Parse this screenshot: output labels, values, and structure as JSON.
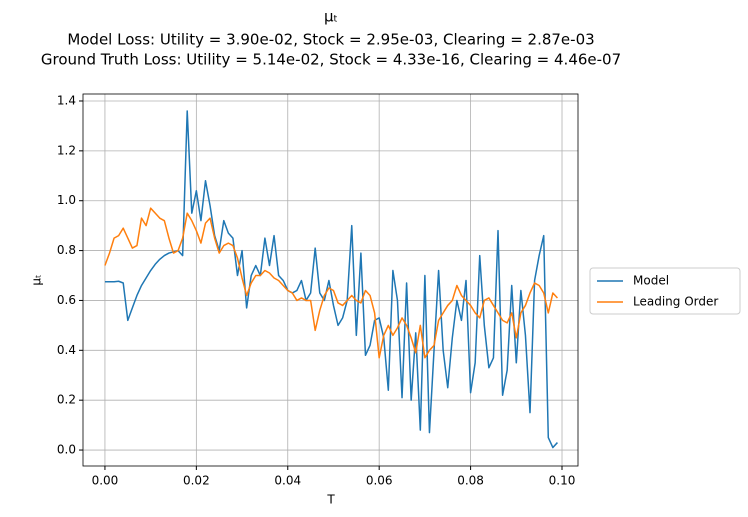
{
  "chart_data": {
    "type": "line",
    "title": "μₜ",
    "subtitle": [
      "Model Loss: Utility = 3.90e-02, Stock = 2.95e-03, Clearing = 2.87e-03",
      "Ground Truth Loss: Utility = 5.14e-02, Stock = 4.33e-16, Clearing = 4.46e-07"
    ],
    "x_label": "T",
    "y_label": "μₜ",
    "x": [
      0,
      0.001,
      0.002,
      0.003,
      0.004,
      0.005,
      0.006,
      0.007,
      0.008,
      0.009,
      0.01,
      0.011,
      0.012,
      0.013,
      0.014,
      0.015,
      0.016,
      0.017,
      0.018,
      0.019,
      0.02,
      0.021,
      0.022,
      0.023,
      0.024,
      0.025,
      0.026,
      0.027,
      0.028,
      0.029,
      0.03,
      0.031,
      0.032,
      0.033,
      0.034,
      0.035,
      0.036,
      0.037,
      0.038,
      0.039,
      0.04,
      0.041,
      0.042,
      0.043,
      0.044,
      0.045,
      0.046,
      0.047,
      0.048,
      0.049,
      0.05,
      0.051,
      0.052,
      0.053,
      0.054,
      0.055,
      0.056,
      0.057,
      0.058,
      0.059,
      0.06,
      0.061,
      0.062,
      0.063,
      0.064,
      0.065,
      0.066,
      0.067,
      0.068,
      0.069,
      0.07,
      0.071,
      0.072,
      0.073,
      0.074,
      0.075,
      0.076,
      0.077,
      0.078,
      0.079,
      0.08,
      0.081,
      0.082,
      0.083,
      0.084,
      0.085,
      0.086,
      0.087,
      0.088,
      0.089,
      0.09,
      0.091,
      0.092,
      0.093,
      0.094,
      0.095,
      0.096,
      0.097,
      0.098,
      0.099
    ],
    "series": [
      {
        "name": "Model",
        "color": "#1f77b4",
        "values": [
          0.675,
          0.675,
          0.675,
          0.677,
          0.67,
          0.52,
          0.57,
          0.62,
          0.66,
          0.69,
          0.72,
          0.745,
          0.765,
          0.78,
          0.79,
          0.795,
          0.8,
          0.78,
          1.36,
          0.95,
          1.04,
          0.92,
          1.08,
          0.98,
          0.86,
          0.8,
          0.92,
          0.87,
          0.85,
          0.7,
          0.8,
          0.57,
          0.7,
          0.74,
          0.7,
          0.85,
          0.74,
          0.86,
          0.7,
          0.68,
          0.64,
          0.63,
          0.64,
          0.68,
          0.6,
          0.63,
          0.81,
          0.63,
          0.6,
          0.68,
          0.58,
          0.5,
          0.53,
          0.6,
          0.9,
          0.46,
          0.79,
          0.38,
          0.42,
          0.52,
          0.53,
          0.45,
          0.24,
          0.72,
          0.6,
          0.21,
          0.67,
          0.2,
          0.47,
          0.08,
          0.7,
          0.07,
          0.4,
          0.72,
          0.4,
          0.25,
          0.45,
          0.6,
          0.52,
          0.68,
          0.23,
          0.35,
          0.78,
          0.5,
          0.33,
          0.37,
          0.88,
          0.22,
          0.32,
          0.66,
          0.35,
          0.64,
          0.46,
          0.15,
          0.68,
          0.78,
          0.86,
          0.05,
          0.01,
          0.03
        ]
      },
      {
        "name": "Leading Order",
        "color": "#ff7f0e",
        "values": [
          0.74,
          0.79,
          0.85,
          0.86,
          0.89,
          0.85,
          0.81,
          0.82,
          0.93,
          0.9,
          0.97,
          0.95,
          0.93,
          0.92,
          0.85,
          0.79,
          0.8,
          0.85,
          0.95,
          0.92,
          0.88,
          0.83,
          0.91,
          0.93,
          0.85,
          0.79,
          0.82,
          0.83,
          0.82,
          0.77,
          0.69,
          0.62,
          0.67,
          0.7,
          0.7,
          0.72,
          0.71,
          0.69,
          0.68,
          0.66,
          0.64,
          0.63,
          0.6,
          0.61,
          0.6,
          0.6,
          0.48,
          0.56,
          0.62,
          0.65,
          0.64,
          0.59,
          0.58,
          0.6,
          0.62,
          0.6,
          0.59,
          0.64,
          0.62,
          0.55,
          0.37,
          0.46,
          0.5,
          0.46,
          0.49,
          0.53,
          0.5,
          0.45,
          0.39,
          0.5,
          0.37,
          0.4,
          0.42,
          0.52,
          0.55,
          0.58,
          0.6,
          0.66,
          0.62,
          0.6,
          0.58,
          0.55,
          0.53,
          0.6,
          0.61,
          0.58,
          0.55,
          0.52,
          0.51,
          0.55,
          0.45,
          0.55,
          0.58,
          0.63,
          0.67,
          0.66,
          0.63,
          0.55,
          0.63,
          0.61
        ]
      }
    ],
    "xlim": [
      -0.0048,
      0.1035
    ],
    "ylim": [
      -0.064,
      1.428
    ],
    "xticks": [
      {
        "value": 0,
        "label": "0.00"
      },
      {
        "value": 0.02,
        "label": "0.02"
      },
      {
        "value": 0.04,
        "label": "0.04"
      },
      {
        "value": 0.06,
        "label": "0.06"
      },
      {
        "value": 0.08,
        "label": "0.08"
      },
      {
        "value": 0.1,
        "label": "0.10"
      }
    ],
    "yticks": [
      {
        "value": 0,
        "label": "0.0"
      },
      {
        "value": 0.2,
        "label": "0.2"
      },
      {
        "value": 0.4,
        "label": "0.4"
      },
      {
        "value": 0.6,
        "label": "0.6"
      },
      {
        "value": 0.8,
        "label": "0.8"
      },
      {
        "value": 1,
        "label": "1.0"
      },
      {
        "value": 1.2,
        "label": "1.2"
      },
      {
        "value": 1.4,
        "label": "1.4"
      }
    ],
    "grid": true,
    "legend": "right"
  }
}
